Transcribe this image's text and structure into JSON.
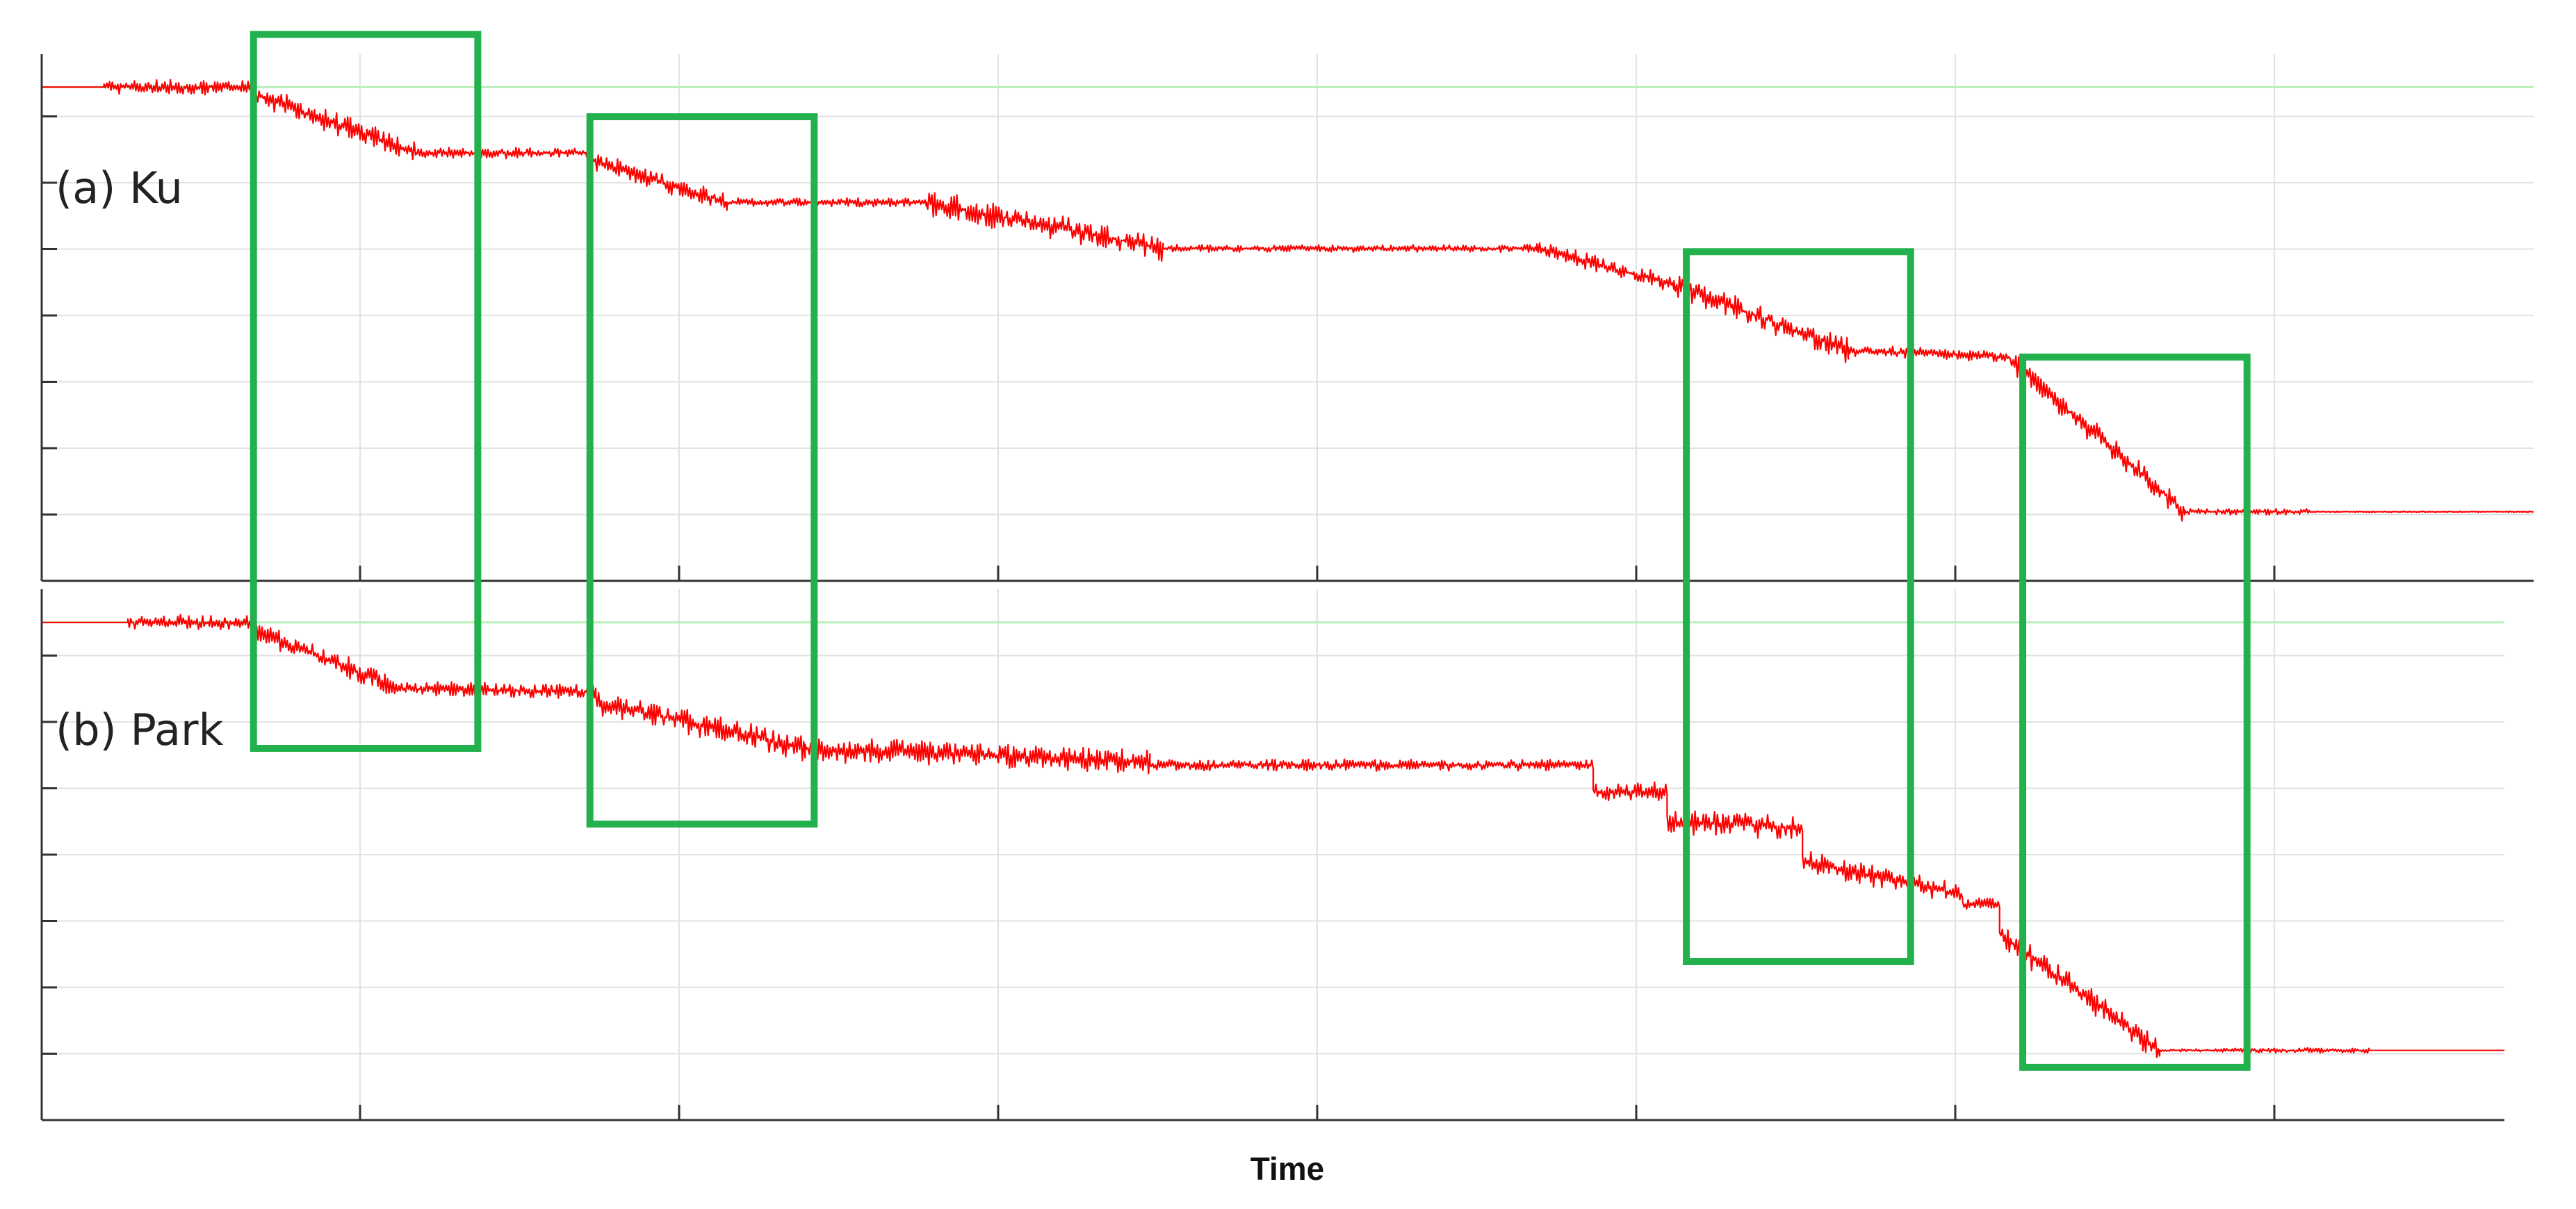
{
  "chart_data": [
    {
      "type": "line",
      "panel_label": "(a) Ku",
      "xlabel": "Time",
      "ylabel": "",
      "x_tick_labels": [],
      "y_tick_labels": [],
      "grid": true,
      "xlim": [
        0,
        100
      ],
      "ylim": [
        0,
        8
      ],
      "reference_level": 7.5,
      "series": [
        {
          "color": "#ff0000",
          "segments": [
            {
              "x0": 0,
              "x1": 2.5,
              "y0": 7.5,
              "y1": 7.5,
              "noise": 0
            },
            {
              "x0": 2.5,
              "x1": 8.5,
              "y0": 7.5,
              "y1": 7.5,
              "noise": 0.12
            },
            {
              "x0": 8.5,
              "x1": 15.0,
              "y0": 7.4,
              "y1": 6.5,
              "noise": 0.18
            },
            {
              "x0": 15.0,
              "x1": 22.0,
              "y0": 6.5,
              "y1": 6.5,
              "noise": 0.09
            },
            {
              "x0": 22.0,
              "x1": 27.5,
              "y0": 6.4,
              "y1": 5.75,
              "noise": 0.16
            },
            {
              "x0": 27.5,
              "x1": 35.5,
              "y0": 5.75,
              "y1": 5.75,
              "noise": 0.07
            },
            {
              "x0": 35.5,
              "x1": 45.0,
              "y0": 5.75,
              "y1": 5.05,
              "noise": 0.22
            },
            {
              "x0": 45.0,
              "x1": 60.0,
              "y0": 5.05,
              "y1": 5.05,
              "noise": 0.06
            },
            {
              "x0": 60.0,
              "x1": 65.5,
              "y0": 5.05,
              "y1": 4.5,
              "noise": 0.14
            },
            {
              "x0": 65.5,
              "x1": 72.5,
              "y0": 4.5,
              "y1": 3.5,
              "noise": 0.2
            },
            {
              "x0": 72.5,
              "x1": 79.0,
              "y0": 3.5,
              "y1": 3.4,
              "noise": 0.09
            },
            {
              "x0": 79.0,
              "x1": 86.0,
              "y0": 3.35,
              "y1": 1.05,
              "noise": 0.2
            },
            {
              "x0": 86.0,
              "x1": 91.0,
              "y0": 1.05,
              "y1": 1.05,
              "noise": 0.05
            },
            {
              "x0": 91.0,
              "x1": 100.0,
              "y0": 1.05,
              "y1": 1.05,
              "noise": 0.01
            }
          ]
        }
      ]
    },
    {
      "type": "line",
      "panel_label": "(b) Park",
      "xlabel": "Time",
      "ylabel": "",
      "x_tick_labels": [],
      "y_tick_labels": [],
      "grid": true,
      "xlim": [
        0,
        100
      ],
      "ylim": [
        0,
        8
      ],
      "reference_level": 7.5,
      "series": [
        {
          "color": "#ff0000",
          "segments": [
            {
              "x0": 0,
              "x1": 3.5,
              "y0": 7.5,
              "y1": 7.5,
              "noise": 0
            },
            {
              "x0": 3.5,
              "x1": 8.5,
              "y0": 7.5,
              "y1": 7.5,
              "noise": 0.12
            },
            {
              "x0": 8.5,
              "x1": 14.5,
              "y0": 7.4,
              "y1": 6.5,
              "noise": 0.18
            },
            {
              "x0": 14.5,
              "x1": 22.5,
              "y0": 6.5,
              "y1": 6.45,
              "noise": 0.12
            },
            {
              "x0": 22.5,
              "x1": 31.0,
              "y0": 6.3,
              "y1": 5.6,
              "noise": 0.2
            },
            {
              "x0": 31.0,
              "x1": 45.0,
              "y0": 5.6,
              "y1": 5.4,
              "noise": 0.2
            },
            {
              "x0": 45.0,
              "x1": 63.0,
              "y0": 5.35,
              "y1": 5.35,
              "noise": 0.09
            },
            {
              "x0": 63.0,
              "x1": 66.0,
              "y0": 4.95,
              "y1": 4.95,
              "noise": 0.15
            },
            {
              "x0": 66.0,
              "x1": 71.5,
              "y0": 4.5,
              "y1": 4.4,
              "noise": 0.2
            },
            {
              "x0": 71.5,
              "x1": 78.0,
              "y0": 3.9,
              "y1": 3.4,
              "noise": 0.18
            },
            {
              "x0": 78.0,
              "x1": 79.5,
              "y0": 3.25,
              "y1": 3.25,
              "noise": 0.1
            },
            {
              "x0": 79.5,
              "x1": 86.0,
              "y0": 2.8,
              "y1": 1.05,
              "noise": 0.2
            },
            {
              "x0": 86.0,
              "x1": 88.5,
              "y0": 1.05,
              "y1": 1.05,
              "noise": 0.02
            },
            {
              "x0": 88.5,
              "x1": 94.5,
              "y0": 1.05,
              "y1": 1.05,
              "noise": 0.04
            },
            {
              "x0": 94.5,
              "x1": 100.0,
              "y0": 1.05,
              "y1": 1.05,
              "noise": 0
            }
          ]
        }
      ]
    }
  ],
  "highlight_boxes": [
    {
      "x_range": [
        8.5,
        17.5
      ],
      "y_top": 8.3,
      "panel": "(a) Ku"
    },
    {
      "x_range": [
        22.0,
        31.0
      ],
      "y_top": 7.05,
      "panel": "(a) Ku"
    },
    {
      "x_range": [
        66.0,
        75.0
      ],
      "y_top": 5.0,
      "panel": "(a) Ku"
    },
    {
      "x_range": [
        79.5,
        88.5
      ],
      "y_top": 3.4,
      "panel": "(a) Ku"
    }
  ],
  "colors": {
    "signal": "#ff0000",
    "highlight_box": "#22b14c",
    "reference_line": "#b8f0b8",
    "grid": "#e2e2e2",
    "axis": "#333333"
  }
}
